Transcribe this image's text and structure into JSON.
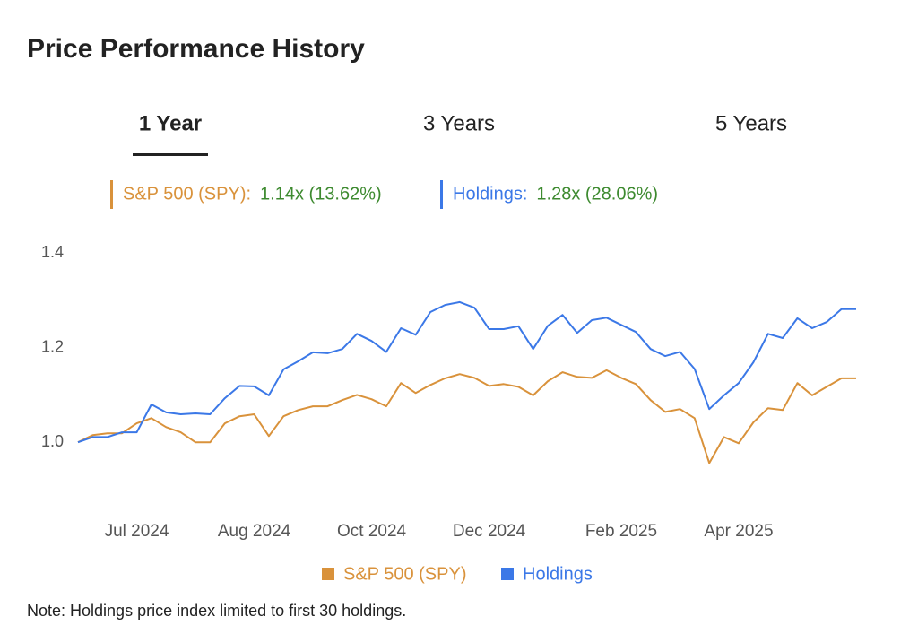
{
  "header": {
    "title": "Price Performance History"
  },
  "tabs": [
    "1 Year",
    "3 Years",
    "5 Years"
  ],
  "chart_data": {
    "type": "line",
    "summary": [
      {
        "label": "S&P 500 (SPY):",
        "value": "1.14x (13.62%)"
      },
      {
        "label": "Holdings:",
        "value": "1.28x (28.06%)"
      }
    ],
    "categories": [
      null,
      null,
      null,
      null,
      "Jul 2024",
      null,
      null,
      null,
      null,
      null,
      null,
      null,
      "Aug 2024",
      null,
      null,
      null,
      null,
      null,
      null,
      null,
      "Oct 2024",
      null,
      null,
      null,
      null,
      null,
      null,
      null,
      "Dec 2024",
      null,
      null,
      null,
      null,
      null,
      null,
      null,
      null,
      "Feb 2025",
      null,
      null,
      null,
      null,
      null,
      null,
      null,
      "Apr 2025",
      null,
      null,
      null,
      null,
      null,
      null,
      null,
      null
    ],
    "series": [
      {
        "name": "S&P 500 (SPY)",
        "color": "#d9923b",
        "values": [
          1.0,
          1.015,
          1.019,
          1.019,
          1.04,
          1.051,
          1.032,
          1.021,
          1.0,
          1.0,
          1.04,
          1.055,
          1.059,
          1.013,
          1.055,
          1.068,
          1.076,
          1.076,
          1.089,
          1.1,
          1.091,
          1.076,
          1.125,
          1.104,
          1.121,
          1.135,
          1.144,
          1.136,
          1.119,
          1.123,
          1.117,
          1.099,
          1.129,
          1.148,
          1.138,
          1.136,
          1.152,
          1.136,
          1.123,
          1.089,
          1.064,
          1.07,
          1.051,
          0.956,
          1.011,
          0.998,
          1.042,
          1.072,
          1.068,
          1.125,
          1.099,
          1.117,
          1.135,
          1.135
        ]
      },
      {
        "name": "Holdings",
        "color": "#3b78e7",
        "values": [
          1.0,
          1.011,
          1.011,
          1.021,
          1.021,
          1.08,
          1.063,
          1.059,
          1.061,
          1.059,
          1.093,
          1.119,
          1.118,
          1.099,
          1.154,
          1.171,
          1.19,
          1.188,
          1.197,
          1.229,
          1.214,
          1.191,
          1.241,
          1.227,
          1.275,
          1.29,
          1.296,
          1.284,
          1.239,
          1.239,
          1.245,
          1.197,
          1.246,
          1.269,
          1.231,
          1.258,
          1.263,
          1.248,
          1.233,
          1.197,
          1.182,
          1.191,
          1.155,
          1.07,
          1.099,
          1.125,
          1.169,
          1.229,
          1.22,
          1.262,
          1.241,
          1.254,
          1.281,
          1.281
        ]
      }
    ],
    "value_color": "#3d8a2f",
    "ylim": [
      0.9,
      1.4
    ],
    "yticks": [
      {
        "value": 1.0,
        "label": "1.0"
      },
      {
        "value": 1.2,
        "label": "1.2"
      },
      {
        "value": 1.4,
        "label": "1.4"
      }
    ],
    "grid": false,
    "note": "Note: Holdings price index limited to first 30 holdings."
  }
}
